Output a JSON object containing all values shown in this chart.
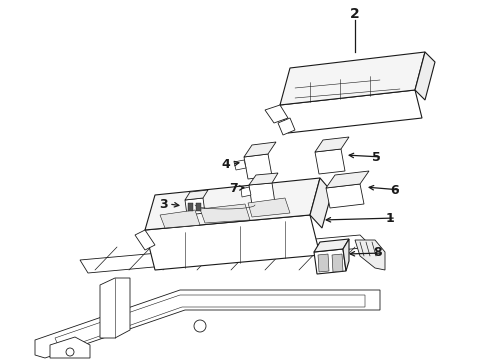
{
  "background_color": "#ffffff",
  "line_color": "#1a1a1a",
  "figsize": [
    4.9,
    3.6
  ],
  "dpi": 100,
  "lw_thin": 0.6,
  "lw_main": 0.8,
  "lw_label": 1.0
}
